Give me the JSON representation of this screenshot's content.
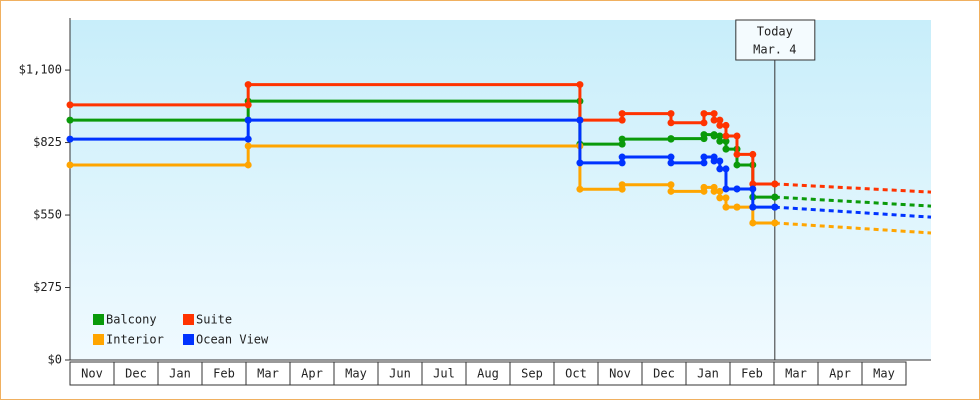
{
  "chart_data": {
    "type": "step-line",
    "categories": [
      "Nov",
      "Dec",
      "Jan",
      "Feb",
      "Mar",
      "Apr",
      "May",
      "Jun",
      "Jul",
      "Aug",
      "Sep",
      "Oct",
      "Nov",
      "Dec",
      "Jan",
      "Feb",
      "Mar",
      "Apr",
      "May"
    ],
    "x": [
      0,
      4.05,
      11.59,
      12.55,
      13.66,
      14.41,
      14.64,
      14.77,
      14.91,
      15.16,
      15.52,
      16.02
    ],
    "forecast_x": [
      16.02,
      19.57
    ],
    "series": [
      {
        "name": "Balcony",
        "color": "#0a9a0a",
        "values": [
          910,
          982,
          819,
          838,
          840,
          855,
          850,
          830,
          800,
          740,
          618,
          618
        ],
        "forecast_values": [
          618,
          584
        ]
      },
      {
        "name": "Suite",
        "color": "#ff3300",
        "values": [
          968,
          1045,
          910,
          935,
          900,
          935,
          910,
          890,
          850,
          780,
          668,
          668
        ],
        "forecast_values": [
          668,
          637
        ]
      },
      {
        "name": "Interior",
        "color": "#ffa500",
        "values": [
          740,
          812,
          648,
          665,
          640,
          655,
          640,
          615,
          580,
          580,
          520,
          520
        ],
        "forecast_values": [
          520,
          482
        ]
      },
      {
        "name": "Ocean View",
        "color": "#0033ff",
        "values": [
          838,
          910,
          748,
          770,
          748,
          770,
          755,
          725,
          649,
          649,
          580,
          580
        ],
        "forecast_values": [
          580,
          542
        ]
      }
    ],
    "xlim": [
      0,
      19.57
    ],
    "ylim": [
      0,
      1290
    ],
    "yticks": [
      {
        "value": 0,
        "label": "$0"
      },
      {
        "value": 275,
        "label": "$275"
      },
      {
        "value": 550,
        "label": "$550"
      },
      {
        "value": 825,
        "label": "$825"
      },
      {
        "value": 1100,
        "label": "$1,100"
      }
    ],
    "today": {
      "x": 16.02,
      "label": "Today",
      "date": "Mar. 4"
    }
  }
}
